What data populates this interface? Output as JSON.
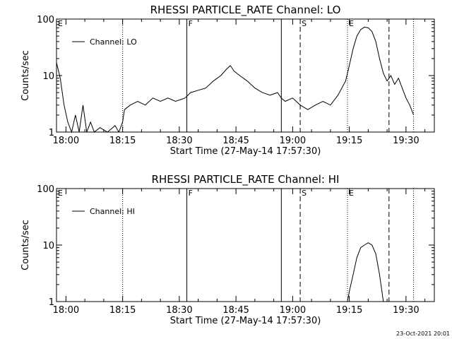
{
  "footer_stamp": "23-Oct-2021 20:01",
  "chart_data": [
    {
      "type": "line",
      "title": "RHESSI PARTICLE_RATE Channel: LO",
      "xlabel": "Start Time (27-May-14 17:57:30)",
      "ylabel": "Counts/sec",
      "yscale": "log",
      "xlim": [
        "17:57:30",
        "19:37:30"
      ],
      "ylim": [
        1,
        100
      ],
      "xticks": [
        "18:00",
        "18:15",
        "18:30",
        "18:45",
        "19:00",
        "19:15",
        "19:30"
      ],
      "yticks": [
        "1",
        "10",
        "100"
      ],
      "legend": {
        "position": "top-left",
        "entries": [
          "Channel: LO"
        ]
      },
      "event_lines": [
        {
          "time": "17:57:30",
          "label": "E",
          "style": "none"
        },
        {
          "time": "18:15:00",
          "label": "",
          "style": "dotted"
        },
        {
          "time": "18:32:00",
          "label": "F",
          "style": "solid"
        },
        {
          "time": "18:57:00",
          "label": "",
          "style": "solid"
        },
        {
          "time": "19:02:00",
          "label": "S",
          "style": "dashed"
        },
        {
          "time": "19:14:30",
          "label": "E",
          "style": "dotted"
        },
        {
          "time": "19:25:30",
          "label": "",
          "style": "dashed"
        },
        {
          "time": "19:32:00",
          "label": "",
          "style": "dotted"
        }
      ],
      "series": [
        {
          "name": "Channel: LO",
          "points": [
            [
              "17:57:30",
              17
            ],
            [
              "17:58:30",
              9
            ],
            [
              "17:59:30",
              3
            ],
            [
              "18:00:30",
              1.5
            ],
            [
              "18:01:30",
              1
            ],
            [
              "18:02:30",
              2
            ],
            [
              "18:03:30",
              1
            ],
            [
              "18:04:30",
              3
            ],
            [
              "18:05:30",
              1
            ],
            [
              "18:06:30",
              1.5
            ],
            [
              "18:07:30",
              1
            ],
            [
              "18:09:00",
              1.2
            ],
            [
              "18:11:00",
              1
            ],
            [
              "18:13:00",
              1.3
            ],
            [
              "18:14:00",
              1
            ],
            [
              "18:15:00",
              1.5
            ],
            [
              "18:15:30",
              2.5
            ],
            [
              "18:17:00",
              3
            ],
            [
              "18:19:00",
              3.5
            ],
            [
              "18:21:00",
              3
            ],
            [
              "18:23:00",
              4
            ],
            [
              "18:25:00",
              3.5
            ],
            [
              "18:27:00",
              4
            ],
            [
              "18:29:00",
              3.5
            ],
            [
              "18:31:30",
              4
            ],
            [
              "18:33:00",
              5
            ],
            [
              "18:35:00",
              5.5
            ],
            [
              "18:37:00",
              6
            ],
            [
              "18:39:00",
              8
            ],
            [
              "18:41:00",
              10
            ],
            [
              "18:42:30",
              13
            ],
            [
              "18:43:30",
              15
            ],
            [
              "18:44:30",
              12
            ],
            [
              "18:46:00",
              10
            ],
            [
              "18:48:00",
              8
            ],
            [
              "18:50:00",
              6
            ],
            [
              "18:52:00",
              5
            ],
            [
              "18:54:00",
              4.5
            ],
            [
              "18:56:00",
              5
            ],
            [
              "18:57:00",
              4
            ],
            [
              "18:58:00",
              3.5
            ],
            [
              "19:00:00",
              4
            ],
            [
              "19:02:00",
              3
            ],
            [
              "19:04:00",
              2.5
            ],
            [
              "19:06:00",
              3
            ],
            [
              "19:08:00",
              3.5
            ],
            [
              "19:10:00",
              3
            ],
            [
              "19:12:00",
              4.5
            ],
            [
              "19:14:00",
              8
            ],
            [
              "19:15:00",
              15
            ],
            [
              "19:16:00",
              30
            ],
            [
              "19:17:00",
              50
            ],
            [
              "19:18:00",
              65
            ],
            [
              "19:19:00",
              72
            ],
            [
              "19:20:00",
              70
            ],
            [
              "19:21:00",
              60
            ],
            [
              "19:22:00",
              40
            ],
            [
              "19:23:00",
              20
            ],
            [
              "19:24:00",
              11
            ],
            [
              "19:25:00",
              8
            ],
            [
              "19:26:00",
              10
            ],
            [
              "19:27:00",
              7
            ],
            [
              "19:28:00",
              9
            ],
            [
              "19:29:00",
              6
            ],
            [
              "19:30:00",
              4
            ],
            [
              "19:31:00",
              3
            ],
            [
              "19:32:00",
              2
            ]
          ]
        }
      ]
    },
    {
      "type": "line",
      "title": "RHESSI PARTICLE_RATE Channel: HI",
      "xlabel": "Start Time (27-May-14 17:57:30)",
      "ylabel": "Counts/sec",
      "yscale": "log",
      "xlim": [
        "17:57:30",
        "19:37:30"
      ],
      "ylim": [
        1,
        100
      ],
      "xticks": [
        "18:00",
        "18:15",
        "18:30",
        "18:45",
        "19:00",
        "19:15",
        "19:30"
      ],
      "yticks": [
        "1",
        "10",
        "100"
      ],
      "legend": {
        "position": "top-left",
        "entries": [
          "Channel: HI"
        ]
      },
      "event_lines": [
        {
          "time": "17:57:30",
          "label": "E",
          "style": "none"
        },
        {
          "time": "18:15:00",
          "label": "",
          "style": "dotted"
        },
        {
          "time": "18:32:00",
          "label": "F",
          "style": "solid"
        },
        {
          "time": "18:57:00",
          "label": "",
          "style": "solid"
        },
        {
          "time": "19:02:00",
          "label": "S",
          "style": "dashed"
        },
        {
          "time": "19:14:30",
          "label": "E",
          "style": "dotted"
        },
        {
          "time": "19:25:30",
          "label": "",
          "style": "dashed"
        },
        {
          "time": "19:32:00",
          "label": "",
          "style": "dotted"
        }
      ],
      "series": [
        {
          "name": "Channel: HI",
          "points": [
            [
              "19:14:30",
              1
            ],
            [
              "19:15:00",
              1.5
            ],
            [
              "19:16:00",
              3
            ],
            [
              "19:17:00",
              6
            ],
            [
              "19:18:00",
              9
            ],
            [
              "19:19:00",
              10
            ],
            [
              "19:20:00",
              11
            ],
            [
              "19:21:00",
              10
            ],
            [
              "19:22:00",
              7
            ],
            [
              "19:23:00",
              3
            ],
            [
              "19:24:00",
              1
            ]
          ]
        }
      ]
    }
  ]
}
